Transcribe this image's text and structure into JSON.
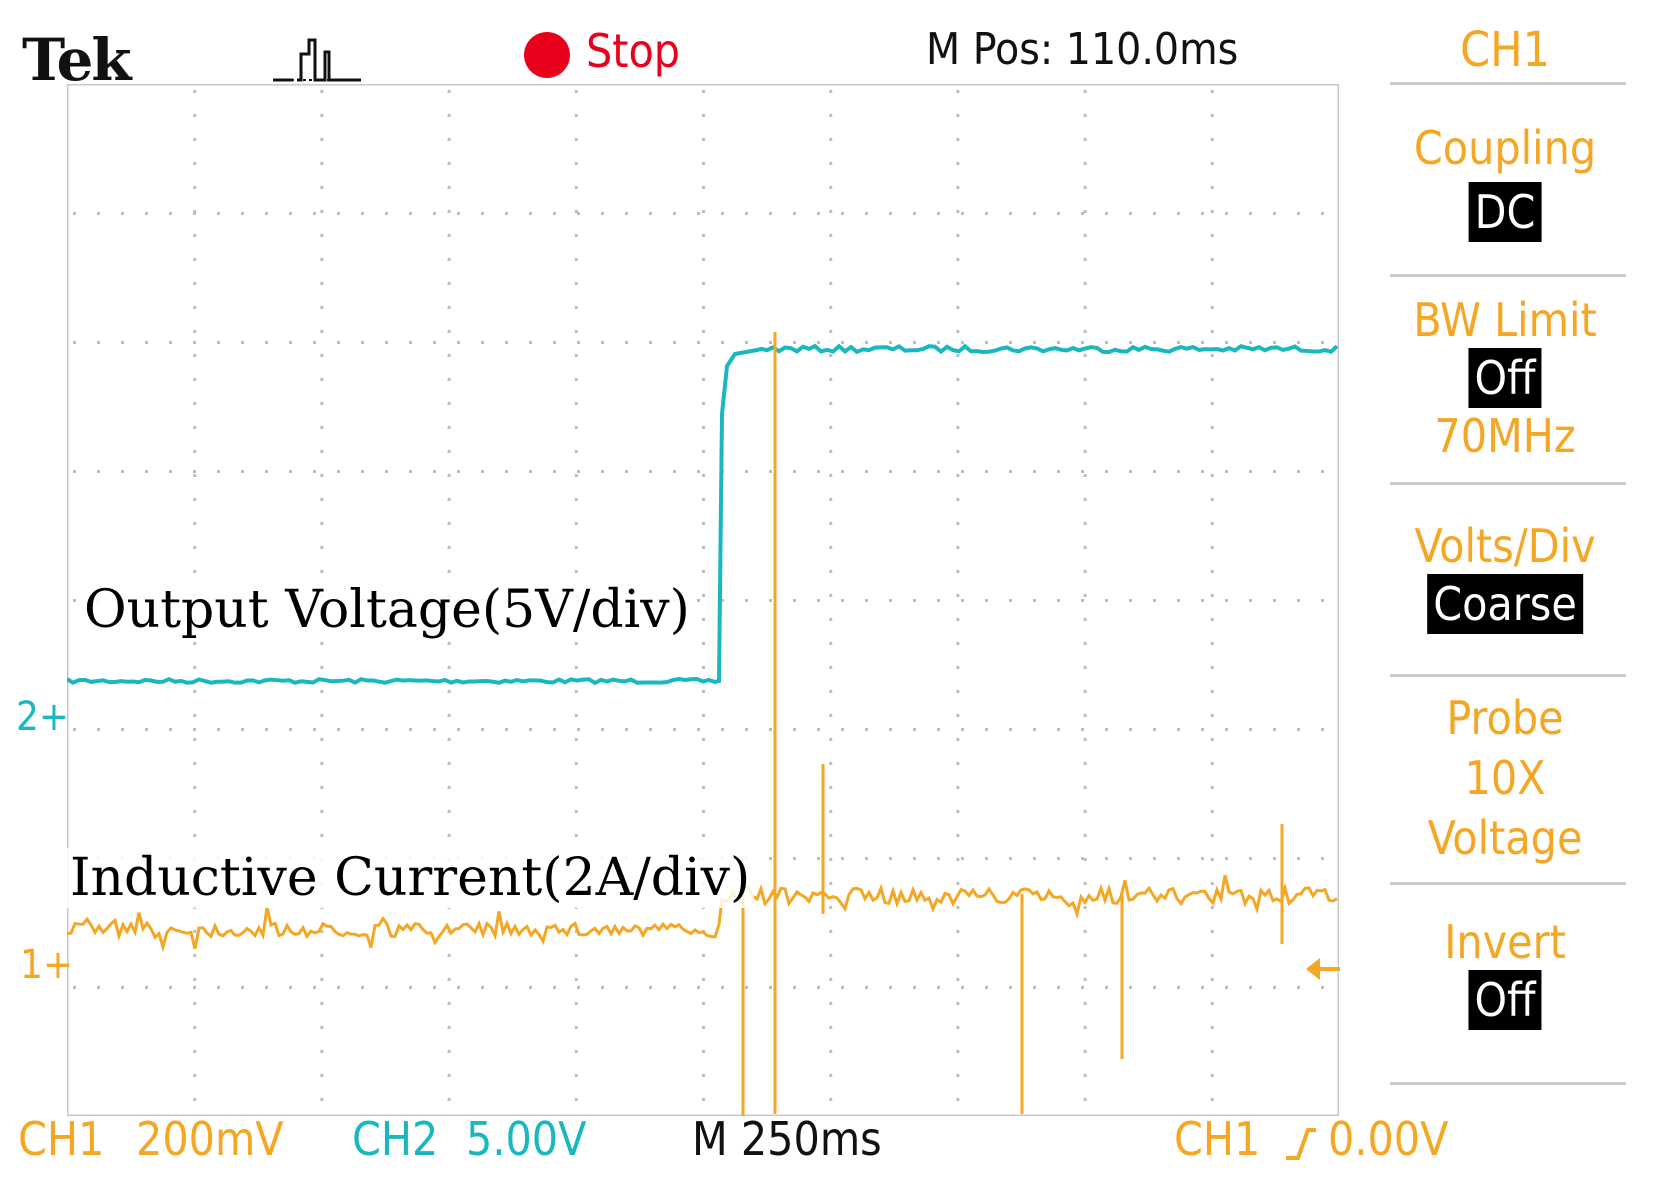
{
  "header": {
    "brand": "Tek",
    "acquisition_status": "Stop",
    "horizontal_position": "M Pos: 110.0ms"
  },
  "side_menu": {
    "channel": "CH1",
    "items": [
      {
        "label": "Coupling",
        "value": "DC"
      },
      {
        "label": "BW Limit",
        "value": "Off",
        "extra": "70MHz"
      },
      {
        "label": "Volts/Div",
        "value": "Coarse"
      },
      {
        "label": "Probe",
        "line2": "10X",
        "line3": "Voltage"
      },
      {
        "label": "Invert",
        "value": "Off"
      }
    ]
  },
  "status_bar": {
    "ch1_label": "CH1",
    "ch1_scale": "200mV",
    "ch2_label": "CH2",
    "ch2_scale": "5.00V",
    "timebase": "M 250ms",
    "trigger_source": "CH1",
    "trigger_level": "0.00V"
  },
  "annotations": {
    "voltage": "Output Voltage(5V/div)",
    "current": "Inductive Current(2A/div)"
  },
  "markers": {
    "ch2": "2",
    "ch1": "1"
  },
  "colors": {
    "ch1": "#f5a623",
    "ch2": "#19b8bf",
    "stop": "#e8001c"
  }
}
